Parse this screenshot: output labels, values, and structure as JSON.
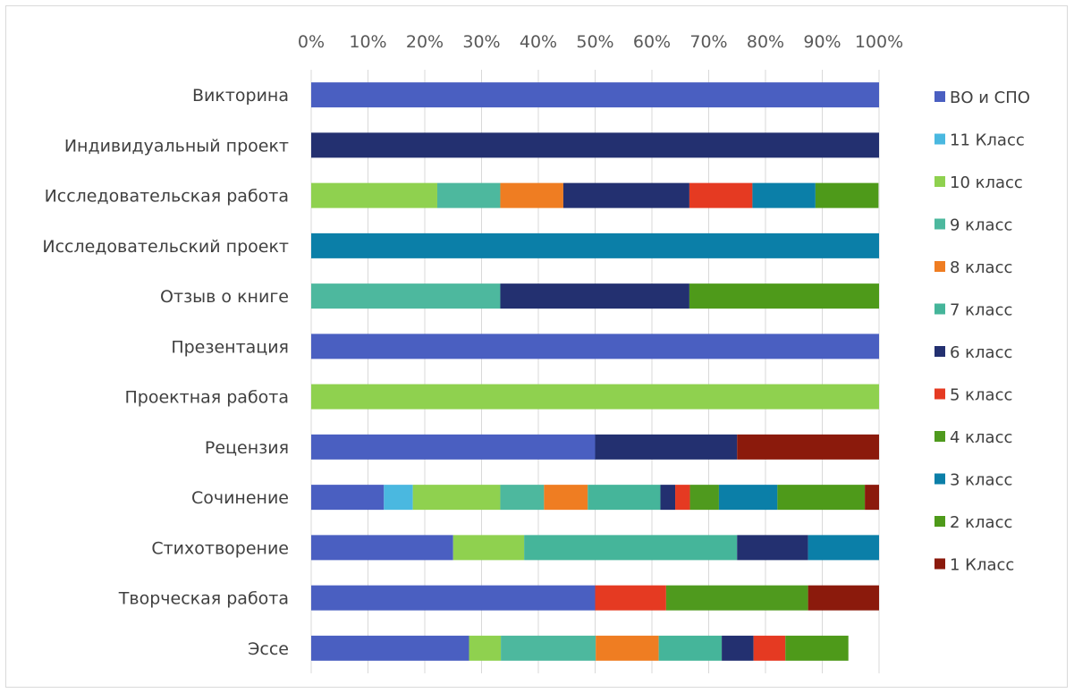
{
  "chart_data": {
    "type": "bar",
    "orientation": "horizontal",
    "stacked": "percent",
    "xlim": [
      0,
      100
    ],
    "x_ticks": [
      "0%",
      "10%",
      "20%",
      "30%",
      "40%",
      "50%",
      "60%",
      "70%",
      "80%",
      "90%",
      "100%"
    ],
    "legend_position": "right",
    "grid": true,
    "categories": [
      "Викторина",
      "Индивидуальный проект",
      "Исследовательская работа",
      "Исследовательский проект",
      "Отзыв о книге",
      "Презентация",
      "Проектная работа",
      "Рецензия",
      "Сочинение",
      "Стихотворение",
      "Творческая работа",
      "Эссе"
    ],
    "series": [
      {
        "name": "ВО и СПО",
        "color": "#4a5fc1",
        "values": [
          100,
          0,
          0,
          0,
          0,
          100,
          0,
          50,
          12.8,
          25,
          50,
          27.8
        ]
      },
      {
        "name": "11 Класс",
        "color": "#4ab8e0",
        "values": [
          0,
          0,
          0,
          0,
          0,
          0,
          0,
          0,
          5.1,
          0,
          0,
          0
        ]
      },
      {
        "name": "10 класс",
        "color": "#8fd14f",
        "values": [
          0,
          0,
          22.2,
          0,
          0,
          0,
          100,
          0,
          15.4,
          12.5,
          0,
          5.6
        ]
      },
      {
        "name": "9 класс",
        "color": "#4db89e",
        "values": [
          0,
          0,
          11.1,
          0,
          33.3,
          0,
          0,
          0,
          7.7,
          0,
          0,
          16.7
        ]
      },
      {
        "name": "8 класс",
        "color": "#ef7d22",
        "values": [
          0,
          0,
          11.1,
          0,
          0,
          0,
          0,
          0,
          7.7,
          0,
          0,
          11.1
        ]
      },
      {
        "name": "7 класс",
        "color": "#45b59a",
        "values": [
          0,
          0,
          0,
          0,
          0,
          0,
          0,
          0,
          12.8,
          37.5,
          0,
          11.1
        ]
      },
      {
        "name": "6 класс",
        "color": "#233070",
        "values": [
          0,
          100,
          22.2,
          0,
          33.3,
          0,
          0,
          25,
          2.6,
          12.5,
          0,
          5.6
        ]
      },
      {
        "name": "5 класс",
        "color": "#e53a22",
        "values": [
          0,
          0,
          11.1,
          0,
          0,
          0,
          0,
          0,
          2.6,
          0,
          12.5,
          5.6
        ]
      },
      {
        "name": "4 класс",
        "color": "#4f9a1e",
        "values": [
          0,
          0,
          0,
          0,
          0,
          0,
          0,
          0,
          5.1,
          0,
          25,
          0
        ]
      },
      {
        "name": "3 класс",
        "color": "#0b7fa8",
        "values": [
          0,
          0,
          11.1,
          100,
          0,
          0,
          0,
          0,
          10.3,
          12.5,
          0,
          0
        ]
      },
      {
        "name": "2 класс",
        "color": "#4e9a1a",
        "values": [
          0,
          0,
          11.1,
          0,
          33.4,
          0,
          0,
          0,
          15.4,
          0,
          0,
          11.1
        ]
      },
      {
        "name": "1 Класс",
        "color": "#8b1a0c",
        "values": [
          0,
          0,
          0,
          0,
          0,
          0,
          0,
          25,
          2.5,
          0,
          12.5,
          0
        ]
      }
    ]
  }
}
